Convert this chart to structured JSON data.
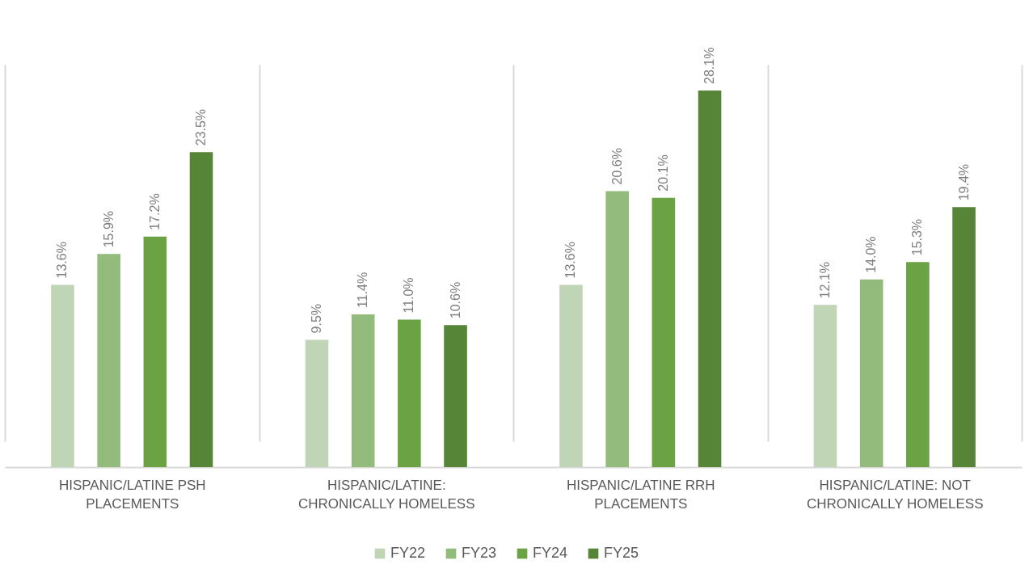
{
  "chart_data": {
    "type": "bar",
    "categories": [
      "HISPANIC/LATINE PSH PLACEMENTS",
      "HISPANIC/LATINE: CHRONICALLY HOMELESS",
      "HISPANIC/LATINE RRH PLACEMENTS",
      "HISPANIC/LATINE: NOT CHRONICALLY HOMELESS"
    ],
    "series": [
      {
        "name": "FY22",
        "color": "#c0d4b6",
        "values": [
          13.6,
          9.5,
          13.6,
          12.1
        ],
        "value_labels": [
          "13.6%",
          "9.5%",
          "13.6%",
          "12.1%"
        ]
      },
      {
        "name": "FY23",
        "color": "#93bb7b",
        "values": [
          15.9,
          11.4,
          20.6,
          14.0
        ],
        "value_labels": [
          "15.9%",
          "11.4%",
          "20.6%",
          "14.0%"
        ]
      },
      {
        "name": "FY24",
        "color": "#6ba243",
        "values": [
          17.2,
          11.0,
          20.1,
          15.3
        ],
        "value_labels": [
          "17.2%",
          "11.0%",
          "20.1%",
          "15.3%"
        ]
      },
      {
        "name": "FY25",
        "color": "#578537",
        "values": [
          23.5,
          10.6,
          28.1,
          19.4
        ],
        "value_labels": [
          "23.5%",
          "10.6%",
          "28.1%",
          "19.4%"
        ]
      }
    ],
    "grid": "x",
    "legend": "bottom",
    "tick_labels": "x"
  }
}
